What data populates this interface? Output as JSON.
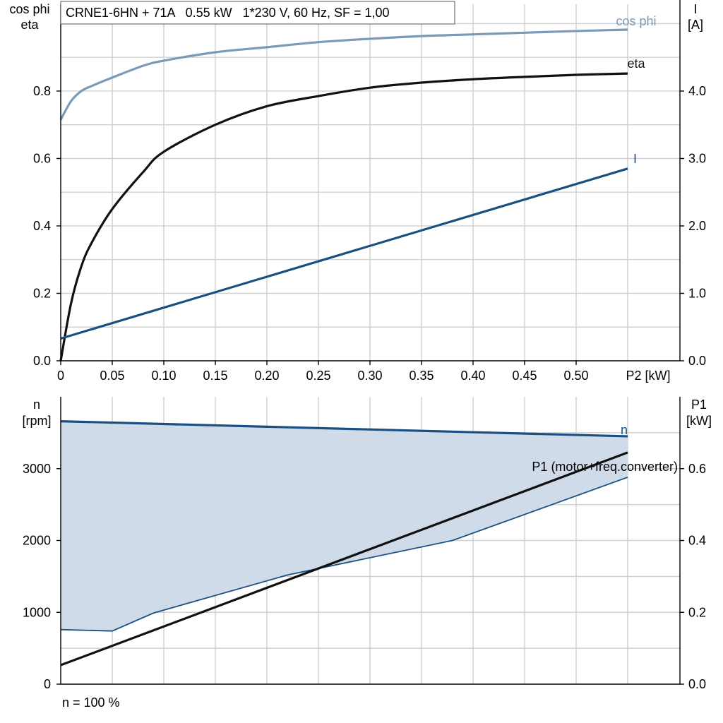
{
  "chart_data": [
    {
      "type": "line",
      "title": "CRNE1-6HN + 71A   0.55 kW   1*230 V, 60 Hz, SF = 1,00",
      "xlabel": "P2 [kW]",
      "ylabel_left": [
        "cos phi",
        "eta"
      ],
      "ylabel_right": [
        "I",
        "[A]"
      ],
      "xlim": [
        0,
        0.6
      ],
      "ylim_left": [
        0,
        1.07
      ],
      "ylim_right": [
        0,
        5.35
      ],
      "x_ticks": [
        "0",
        "0.05",
        "0.10",
        "0.15",
        "0.20",
        "0.25",
        "0.30",
        "0.35",
        "0.40",
        "0.45",
        "0.50"
      ],
      "y_ticks_left": [
        "0.0",
        "0.2",
        "0.4",
        "0.6",
        "0.8"
      ],
      "y_ticks_right": [
        "0.0",
        "1.0",
        "2.0",
        "3.0",
        "4.0"
      ],
      "grid": true,
      "series": [
        {
          "name": "cos phi",
          "axis": "left",
          "color": "#7a9ab8",
          "x": [
            0.0,
            0.01,
            0.02,
            0.03,
            0.05,
            0.08,
            0.1,
            0.15,
            0.2,
            0.25,
            0.3,
            0.35,
            0.4,
            0.45,
            0.5,
            0.55
          ],
          "y": [
            0.715,
            0.77,
            0.8,
            0.815,
            0.84,
            0.875,
            0.89,
            0.915,
            0.93,
            0.945,
            0.955,
            0.963,
            0.968,
            0.973,
            0.978,
            0.982
          ]
        },
        {
          "name": "eta",
          "axis": "left",
          "color": "#111111",
          "x": [
            0.0,
            0.01,
            0.02,
            0.03,
            0.05,
            0.08,
            0.1,
            0.15,
            0.2,
            0.25,
            0.3,
            0.35,
            0.4,
            0.45,
            0.5,
            0.55
          ],
          "y": [
            0.0,
            0.17,
            0.28,
            0.35,
            0.45,
            0.56,
            0.62,
            0.7,
            0.755,
            0.785,
            0.81,
            0.825,
            0.835,
            0.842,
            0.848,
            0.852
          ]
        },
        {
          "name": "I",
          "axis": "right",
          "color": "#1a4f82",
          "x": [
            0.0,
            0.55
          ],
          "y": [
            0.33,
            2.85
          ]
        }
      ]
    },
    {
      "type": "area",
      "xlabel": "",
      "ylabel_left": [
        "n",
        "[rpm]"
      ],
      "ylabel_right": [
        "P1",
        "[kW]"
      ],
      "xlim": [
        0,
        0.6
      ],
      "ylim_left": [
        0,
        4000
      ],
      "ylim_right": [
        0,
        0.8
      ],
      "y_ticks_left": [
        "0",
        "1000",
        "2000",
        "3000"
      ],
      "y_ticks_right": [
        "0.0",
        "0.2",
        "0.4",
        "0.6"
      ],
      "grid": true,
      "footnote": "n = 100 %",
      "operating_range": {
        "color": "#cfdbe8",
        "upper_x": [
          0.0,
          0.55
        ],
        "upper_y": [
          3660,
          3450
        ],
        "lower_x": [
          0.0,
          0.05,
          0.09,
          0.22,
          0.38,
          0.55
        ],
        "lower_y": [
          760,
          740,
          990,
          1520,
          2000,
          2880
        ]
      },
      "series": [
        {
          "name": "n",
          "axis": "left",
          "color": "#1a4f82",
          "x": [
            0.0,
            0.55
          ],
          "y": [
            3660,
            3450
          ]
        },
        {
          "name": "P1 (motor+freq.converter)",
          "axis": "right",
          "color": "#111111",
          "x": [
            0.0,
            0.55
          ],
          "y": [
            0.053,
            0.645
          ]
        }
      ]
    }
  ]
}
